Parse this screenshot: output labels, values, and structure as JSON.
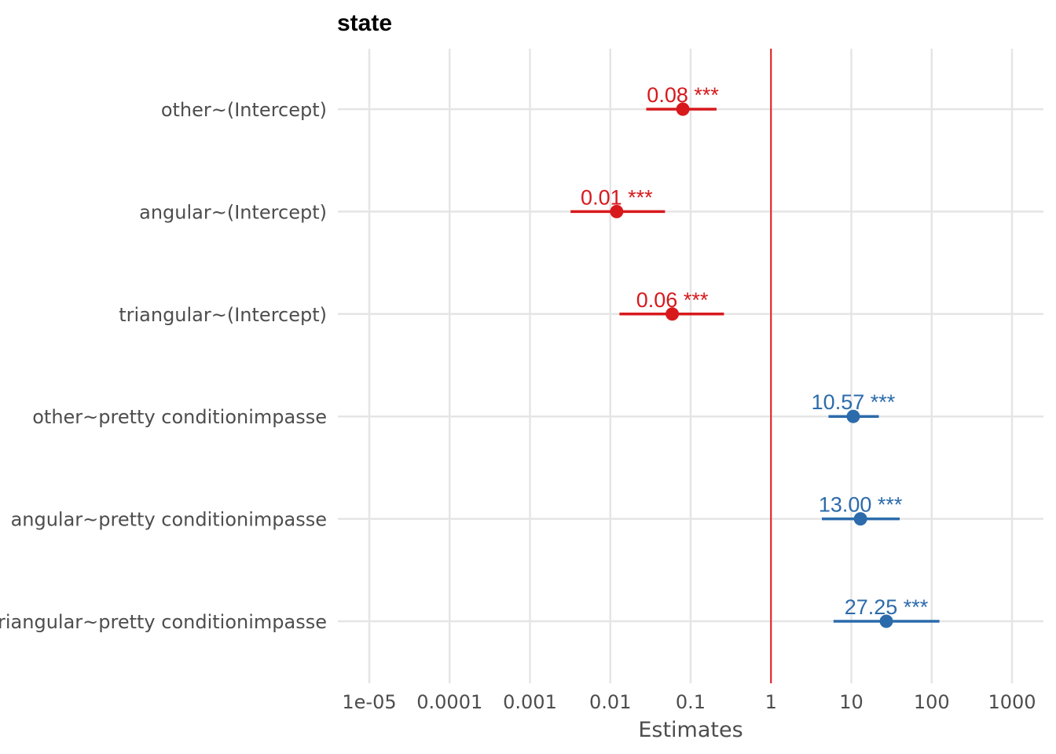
{
  "chart_data": {
    "type": "scatter",
    "subtype": "forest-plot",
    "title": "state",
    "xlabel": "Estimates",
    "ylabel": "",
    "x_scale": "log10",
    "xlim": [
      6e-06,
      2500
    ],
    "grid": true,
    "reference_line": {
      "x": 1,
      "color": "#e41a1c"
    },
    "x_ticks": [
      "1e-05",
      "0.0001",
      "0.001",
      "0.01",
      "0.1",
      "1",
      "10",
      "100",
      "1000"
    ],
    "x_tick_values": [
      1e-05,
      0.0001,
      0.001,
      0.01,
      0.1,
      1,
      10,
      100,
      1000
    ],
    "colors": {
      "below_one": "#d7191c",
      "above_one": "#2c6bab",
      "grid": "#e5e5e5",
      "text": "#4d4d4d"
    },
    "terms": [
      {
        "term": "other~(Intercept)",
        "estimate": 0.08,
        "conf_low": 0.028,
        "conf_high": 0.21,
        "label": "0.08 ***"
      },
      {
        "term": "angular~(Intercept)",
        "estimate": 0.012,
        "conf_low": 0.0032,
        "conf_high": 0.048,
        "label": "0.01 ***"
      },
      {
        "term": "triangular~(Intercept)",
        "estimate": 0.059,
        "conf_low": 0.013,
        "conf_high": 0.26,
        "label": "0.06 ***"
      },
      {
        "term": "other~pretty conditionimpasse",
        "estimate": 10.57,
        "conf_low": 5.2,
        "conf_high": 22.0,
        "label": "10.57 ***"
      },
      {
        "term": "angular~pretty conditionimpasse",
        "estimate": 13.0,
        "conf_low": 4.3,
        "conf_high": 40.0,
        "label": "13.00 ***"
      },
      {
        "term": "triangular~pretty conditionimpasse",
        "estimate": 27.25,
        "conf_low": 6.0,
        "conf_high": 125.0,
        "label": "27.25 ***"
      }
    ]
  }
}
